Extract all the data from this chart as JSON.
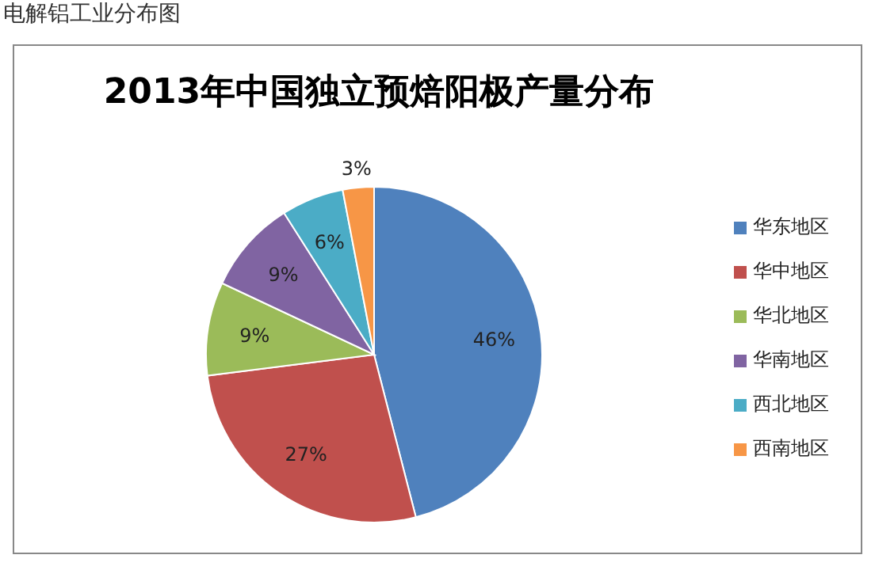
{
  "chart_data": {
    "type": "pie",
    "title": "2013年中国独立预焙阳极产量分布",
    "annotations": [
      "电解铝工业分布图"
    ],
    "categories": [
      "华东地区",
      "华中地区",
      "华北地区",
      "华南地区",
      "西北地区",
      "西南地区"
    ],
    "values": [
      46,
      27,
      9,
      9,
      6,
      3
    ],
    "value_labels": [
      "46%",
      "27%",
      "9%",
      "9%",
      "6%",
      "3%"
    ],
    "colors": [
      "#4f81bd",
      "#c0504d",
      "#9bbb59",
      "#8064a2",
      "#4bacc6",
      "#f79646"
    ],
    "legend": "right"
  }
}
